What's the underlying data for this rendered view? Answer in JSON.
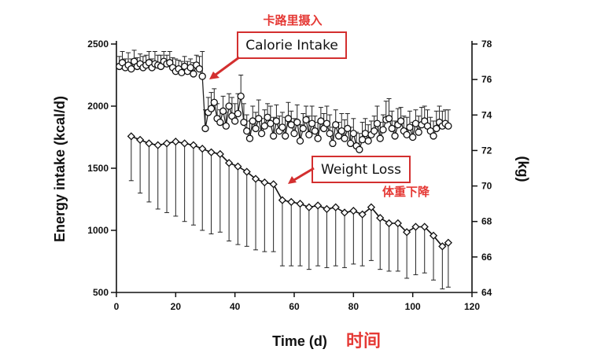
{
  "chart_data": {
    "type": "line",
    "title": "",
    "xlabel": "Time (d)",
    "xlabel_cn": "时间",
    "ylabel_left": "Energy intake (kcal/d)",
    "ylabel_right": "(kg)",
    "xlim": [
      0,
      120
    ],
    "ylim_left": [
      500,
      2500
    ],
    "ylim_right": [
      64,
      78
    ],
    "xticks": [
      "0",
      "20",
      "40",
      "60",
      "80",
      "100",
      "120"
    ],
    "yticks_left": [
      "500",
      "1000",
      "1500",
      "2000",
      "2500"
    ],
    "yticks_right": [
      "64",
      "66",
      "68",
      "70",
      "72",
      "74",
      "76",
      "78"
    ],
    "grid": false,
    "series": [
      {
        "name": "Calorie Intake",
        "axis": "left",
        "marker": "circle",
        "x": [
          1,
          2,
          3,
          4,
          5,
          6,
          7,
          8,
          9,
          10,
          11,
          12,
          13,
          14,
          15,
          16,
          17,
          18,
          19,
          20,
          21,
          22,
          23,
          24,
          25,
          26,
          27,
          28,
          29,
          30,
          31,
          32,
          33,
          34,
          35,
          36,
          37,
          38,
          39,
          40,
          41,
          42,
          43,
          44,
          45,
          46,
          47,
          48,
          49,
          50,
          51,
          52,
          53,
          54,
          55,
          56,
          57,
          58,
          59,
          60,
          61,
          62,
          63,
          64,
          65,
          66,
          67,
          68,
          69,
          70,
          71,
          72,
          73,
          74,
          75,
          76,
          77,
          78,
          79,
          80,
          81,
          82,
          83,
          84,
          85,
          86,
          87,
          88,
          89,
          90,
          91,
          92,
          93,
          94,
          95,
          96,
          97,
          98,
          99,
          100,
          101,
          102,
          103,
          104,
          105,
          106,
          107,
          108,
          109,
          110,
          111,
          112
        ],
        "values": [
          2320,
          2350,
          2310,
          2330,
          2300,
          2360,
          2320,
          2340,
          2310,
          2330,
          2350,
          2310,
          2340,
          2330,
          2320,
          2360,
          2340,
          2350,
          2310,
          2280,
          2300,
          2270,
          2320,
          2280,
          2310,
          2260,
          2330,
          2300,
          2240,
          1820,
          1950,
          1980,
          2030,
          1900,
          1870,
          1960,
          1840,
          2000,
          1920,
          1880,
          1940,
          2080,
          1870,
          1800,
          1740,
          1880,
          1820,
          1900,
          1780,
          1840,
          1910,
          1860,
          1760,
          1880,
          1800,
          1830,
          1760,
          1900,
          1850,
          1780,
          1870,
          1720,
          1820,
          1890,
          1770,
          1860,
          1800,
          1740,
          1880,
          1820,
          1860,
          1780,
          1700,
          1850,
          1760,
          1800,
          1740,
          1820,
          1700,
          1780,
          1680,
          1650,
          1730,
          1780,
          1720,
          1770,
          1800,
          1860,
          1740,
          1810,
          1890,
          1900,
          1820,
          1760,
          1850,
          1880,
          1800,
          1770,
          1830,
          1750,
          1860,
          1790,
          1850,
          1880,
          1840,
          1800,
          1760,
          1820,
          1870,
          1840,
          1860,
          1840
        ],
        "errors": [
          80,
          90,
          70,
          100,
          80,
          90,
          70,
          80,
          90,
          80,
          90,
          70,
          100,
          80,
          90,
          80,
          70,
          90,
          80,
          100,
          70,
          90,
          80,
          80,
          70,
          90,
          80,
          100,
          200,
          150,
          120,
          130,
          110,
          120,
          100,
          120,
          110,
          100,
          150,
          140,
          160,
          170,
          150,
          130,
          140,
          120,
          130,
          150,
          120,
          130,
          110,
          140,
          150,
          130,
          120,
          120,
          150,
          130,
          110,
          120,
          140,
          130,
          120,
          110,
          150,
          140,
          120,
          130,
          110,
          120,
          140,
          150,
          130,
          120,
          110,
          140,
          150,
          120,
          130,
          120,
          110,
          130,
          140,
          120,
          130,
          110,
          120,
          140,
          130,
          120,
          150,
          160,
          140,
          120,
          130,
          110,
          120,
          140,
          130,
          120,
          110,
          130,
          140,
          120,
          130,
          110,
          120,
          140,
          130,
          120,
          110,
          130
        ]
      },
      {
        "name": "Weight Loss",
        "axis": "right",
        "marker": "diamond",
        "x": [
          5,
          8,
          11,
          14,
          17,
          20,
          23,
          26,
          29,
          32,
          35,
          38,
          41,
          44,
          47,
          50,
          53,
          56,
          59,
          62,
          65,
          68,
          71,
          74,
          77,
          80,
          83,
          86,
          89,
          92,
          95,
          98,
          101,
          104,
          107,
          110,
          112
        ],
        "values": [
          72.8,
          72.6,
          72.4,
          72.3,
          72.4,
          72.5,
          72.4,
          72.3,
          72.1,
          71.9,
          71.8,
          71.3,
          71.1,
          70.8,
          70.4,
          70.2,
          70.1,
          69.2,
          69.1,
          69.0,
          68.8,
          68.9,
          68.7,
          68.8,
          68.5,
          68.6,
          68.4,
          68.8,
          68.2,
          67.9,
          67.9,
          67.4,
          67.7,
          67.7,
          67.2,
          66.6,
          66.8
        ],
        "errors_down": [
          2.5,
          3.0,
          3.3,
          3.6,
          3.9,
          4.2,
          4.4,
          4.5,
          4.6,
          4.6,
          4.4,
          4.4,
          4.4,
          4.2,
          4.0,
          3.9,
          3.8,
          3.7,
          3.6,
          3.5,
          3.5,
          3.4,
          3.3,
          3.3,
          3.1,
          3.0,
          2.9,
          3.0,
          2.9,
          2.7,
          2.7,
          2.6,
          2.7,
          2.6,
          2.5,
          2.4,
          2.5
        ]
      }
    ],
    "annotations": [
      {
        "text": "Calorie Intake",
        "cn": "卡路里摄入"
      },
      {
        "text": "Weight Loss",
        "cn": "体重下降"
      }
    ],
    "colors": {
      "axis": "#111111",
      "callout_border": "#d32f2f",
      "cn_text": "#e53935"
    }
  }
}
